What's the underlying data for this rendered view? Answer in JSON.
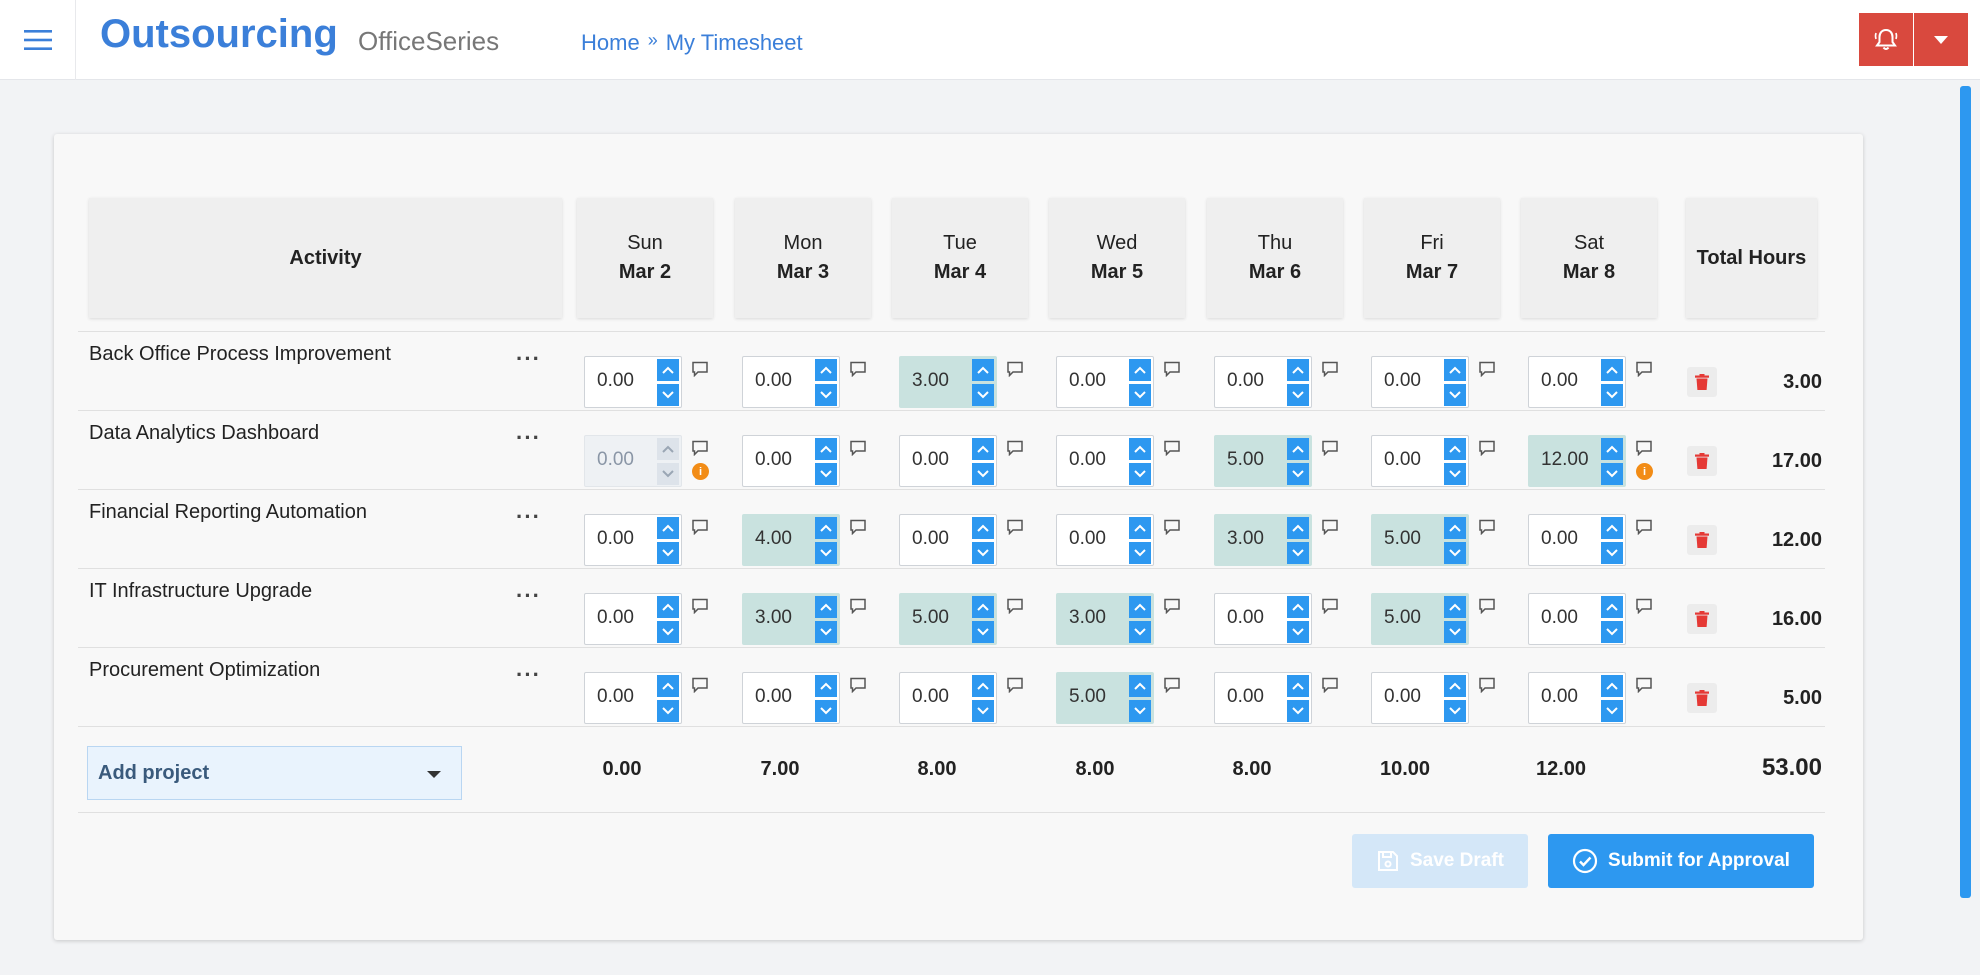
{
  "header": {
    "brand": "Outsourcing",
    "subbrand": "OfficeSeries",
    "breadcrumb": {
      "home": "Home",
      "separator": "»",
      "current": "My Timesheet"
    },
    "icons": {
      "menu": "hamburger-icon",
      "bell": "bell-icon",
      "caret": "caret-down-icon"
    },
    "colors": {
      "brand": "#3b7fd9",
      "alert_button": "#d9493e",
      "accent": "#2d98f0"
    }
  },
  "timesheet": {
    "activity_header": "Activity",
    "total_header": "Total Hours",
    "days": [
      {
        "day": "Sun",
        "date": "Mar 2"
      },
      {
        "day": "Mon",
        "date": "Mar 3"
      },
      {
        "day": "Tue",
        "date": "Mar 4"
      },
      {
        "day": "Wed",
        "date": "Mar 5"
      },
      {
        "day": "Thu",
        "date": "Mar 6"
      },
      {
        "day": "Fri",
        "date": "Mar 7"
      },
      {
        "day": "Sat",
        "date": "Mar 8"
      }
    ],
    "rows": [
      {
        "name": "Back Office Process Improvement",
        "hours": [
          "0.00",
          "0.00",
          "3.00",
          "0.00",
          "0.00",
          "0.00",
          "0.00"
        ],
        "total": "3.00",
        "disabled": [
          false,
          false,
          false,
          false,
          false,
          false,
          false
        ],
        "warnings": [
          false,
          false,
          false,
          false,
          false,
          false,
          false
        ]
      },
      {
        "name": "Data Analytics Dashboard",
        "hours": [
          "0.00",
          "0.00",
          "0.00",
          "0.00",
          "5.00",
          "0.00",
          "12.00"
        ],
        "total": "17.00",
        "disabled": [
          true,
          false,
          false,
          false,
          false,
          false,
          false
        ],
        "warnings": [
          true,
          false,
          false,
          false,
          false,
          false,
          true
        ]
      },
      {
        "name": "Financial Reporting Automation",
        "hours": [
          "0.00",
          "4.00",
          "0.00",
          "0.00",
          "3.00",
          "5.00",
          "0.00"
        ],
        "total": "12.00",
        "disabled": [
          false,
          false,
          false,
          false,
          false,
          false,
          false
        ],
        "warnings": [
          false,
          false,
          false,
          false,
          false,
          false,
          false
        ]
      },
      {
        "name": "IT Infrastructure Upgrade",
        "hours": [
          "0.00",
          "3.00",
          "5.00",
          "3.00",
          "0.00",
          "5.00",
          "0.00"
        ],
        "total": "16.00",
        "disabled": [
          false,
          false,
          false,
          false,
          false,
          false,
          false
        ],
        "warnings": [
          false,
          false,
          false,
          false,
          false,
          false,
          false
        ]
      },
      {
        "name": "Procurement Optimization",
        "hours": [
          "0.00",
          "0.00",
          "0.00",
          "5.00",
          "0.00",
          "0.00",
          "0.00"
        ],
        "total": "5.00",
        "disabled": [
          false,
          false,
          false,
          false,
          false,
          false,
          false
        ],
        "warnings": [
          false,
          false,
          false,
          false,
          false,
          false,
          false
        ]
      }
    ],
    "row_menu_label": "···",
    "warning_glyph": "i",
    "day_totals": [
      "0.00",
      "7.00",
      "8.00",
      "8.00",
      "8.00",
      "10.00",
      "12.00"
    ],
    "grand_total": "53.00",
    "add_project_label": "Add project",
    "colors": {
      "filled_cell": "#c9e2df",
      "spinner": "#2d98f0",
      "warning": "#f28c16",
      "delete": "#e53935"
    }
  },
  "actions": {
    "save_draft": "Save Draft",
    "submit": "Submit for Approval"
  }
}
